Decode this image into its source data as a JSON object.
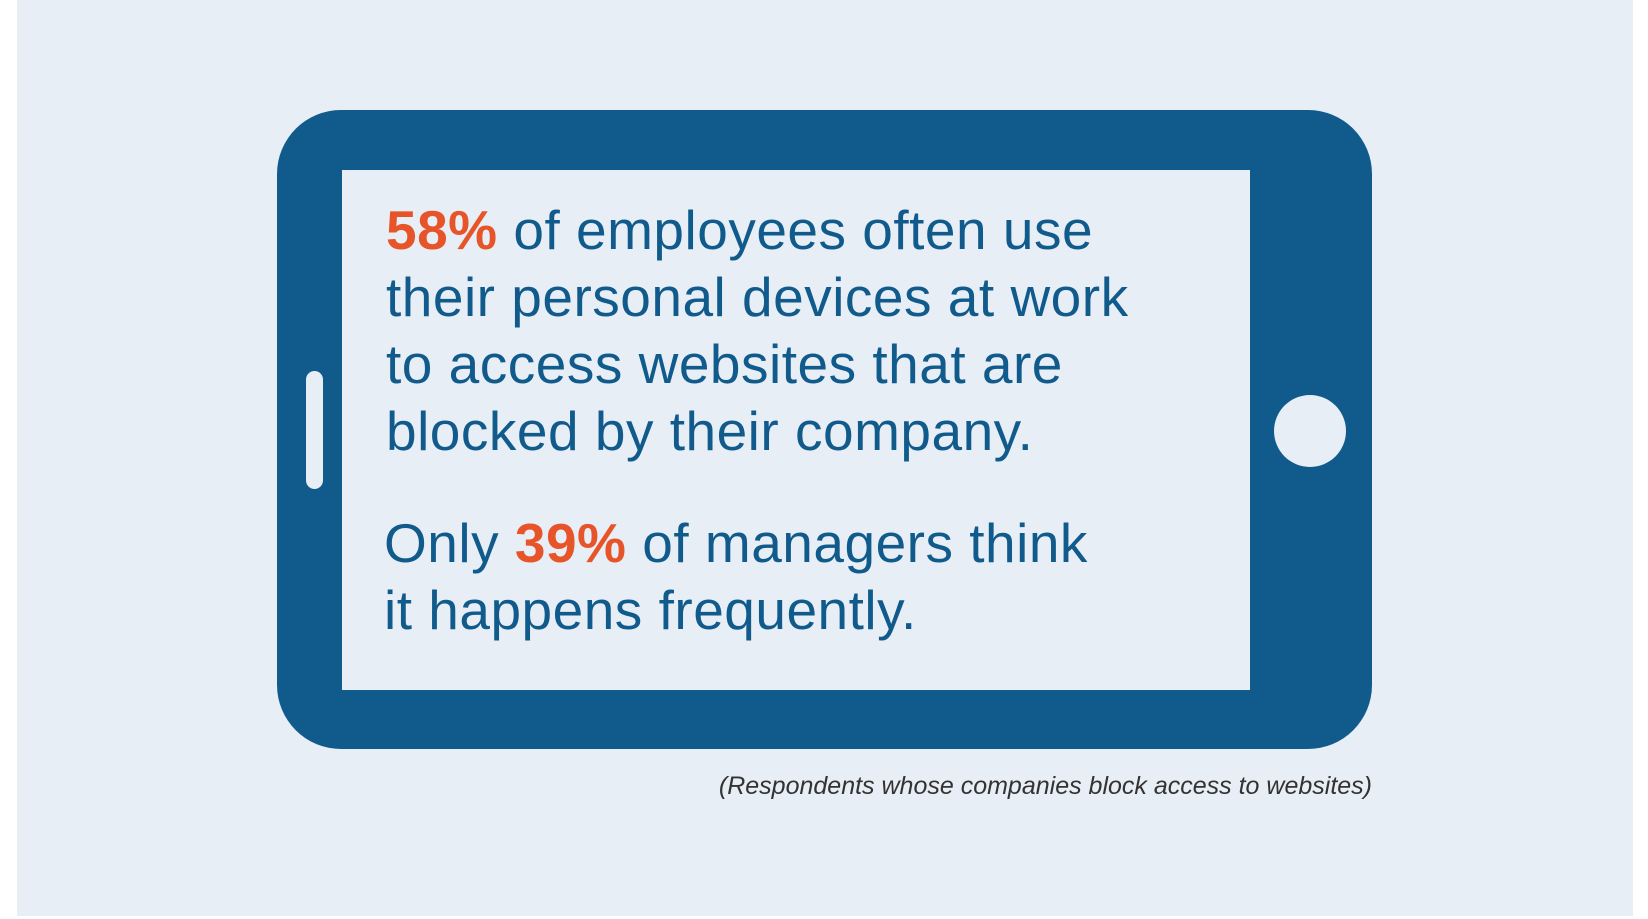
{
  "colors": {
    "phone": "#115b8c",
    "highlight": "#e8542a",
    "background": "#e7eef5",
    "note": "#333333"
  },
  "stat1": {
    "highlight": "58%",
    "line1_rest": " of employees often use",
    "line2": "their personal devices at work",
    "line3": "to access websites that are",
    "line4": "blocked by their company."
  },
  "stat2": {
    "line1_pre": "Only ",
    "highlight": "39%",
    "line1_rest": " of managers think",
    "line2": "it happens frequently."
  },
  "footnote": "(Respondents whose companies block access to websites)"
}
